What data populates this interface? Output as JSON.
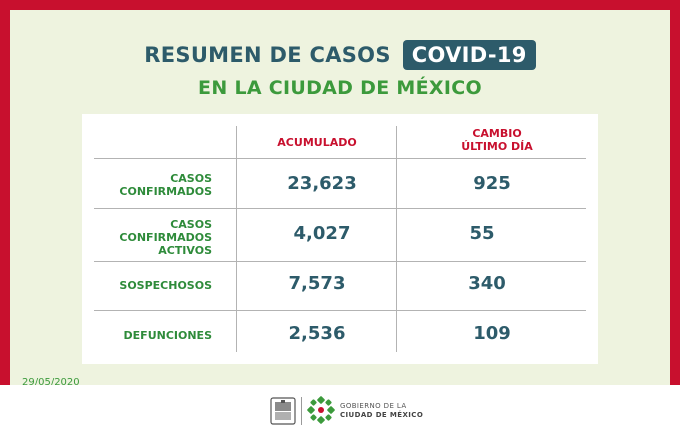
{
  "header": {
    "title": "RESUMEN DE CASOS",
    "badge": "COVID-19",
    "subtitle": "EN LA CIUDAD DE MÉXICO"
  },
  "table": {
    "columns": {
      "accumulated": "ACUMULADO",
      "change_line1": "CAMBIO",
      "change_line2": "ÚLTIMO DÍA"
    },
    "rows": [
      {
        "label_lines": [
          "CASOS",
          "CONFIRMADOS"
        ],
        "accumulated": "23,623",
        "change": "925"
      },
      {
        "label_lines": [
          "CASOS",
          "CONFIRMADOS",
          "ACTIVOS"
        ],
        "accumulated": "4,027",
        "change": "55"
      },
      {
        "label_lines": [
          "SOSPECHOSOS"
        ],
        "accumulated": "7,573",
        "change": "340"
      },
      {
        "label_lines": [
          "DEFUNCIONES"
        ],
        "accumulated": "2,536",
        "change": "109"
      }
    ]
  },
  "date": "29/05/2020",
  "footer": {
    "gov_line1": "GOBIERNO DE LA",
    "gov_line2": "CIUDAD DE MÉXICO"
  },
  "colors": {
    "frame": "#c8102e",
    "panel": "#eef3df",
    "title": "#2d5b6a",
    "subtitle": "#3c9a3c",
    "label": "#2e8b3a",
    "header": "#c8102e"
  }
}
